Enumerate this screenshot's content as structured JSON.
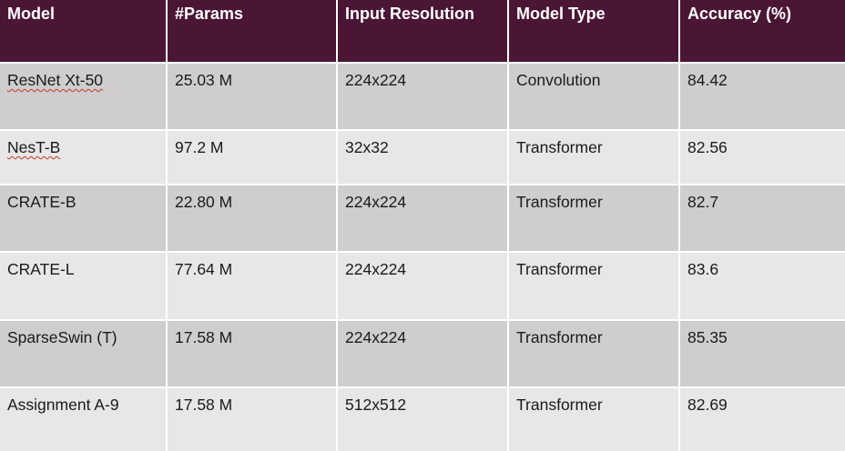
{
  "table": {
    "headers": [
      "Model",
      "#Params",
      "Input Resolution",
      "Model Type",
      "Accuracy (%)"
    ],
    "rows": [
      [
        "ResNet Xt-50",
        "25.03 M",
        "224x224",
        "Convolution",
        "84.42"
      ],
      [
        "NesT-B",
        "97.2 M",
        "32x32",
        "Transformer",
        "82.56"
      ],
      [
        "CRATE-B",
        "22.80 M",
        "224x224",
        "Transformer",
        "82.7"
      ],
      [
        "CRATE-L",
        "77.64 M",
        "224x224",
        "Transformer",
        "83.6"
      ],
      [
        "SparseSwin (T)",
        "17.58 M",
        "224x224",
        "Transformer",
        "85.35"
      ],
      [
        "Assignment A-9",
        "17.58 M",
        "512x512",
        "Transformer",
        "82.69"
      ]
    ]
  },
  "colors": {
    "header_bg": "#4b1535",
    "row_dark": "#cfcdcd",
    "row_light": "#e8e6e6"
  }
}
